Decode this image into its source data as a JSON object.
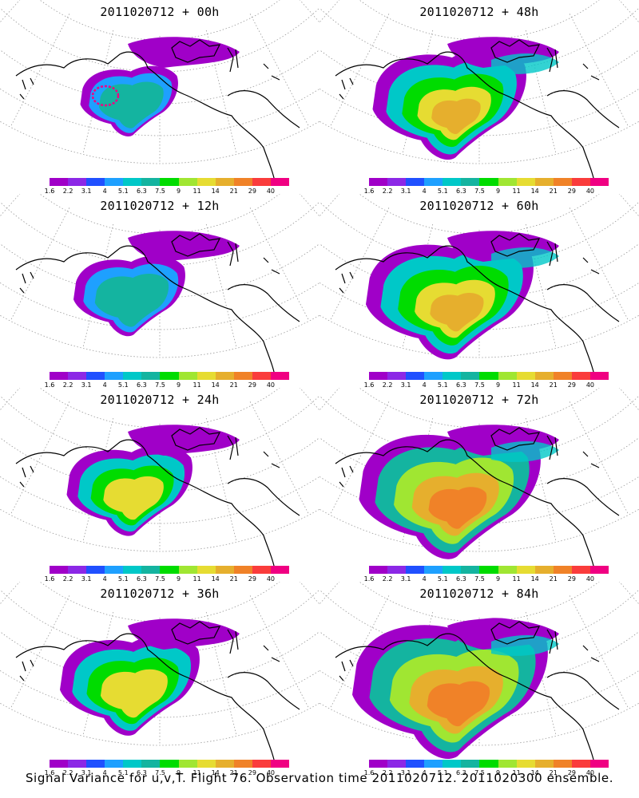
{
  "caption": "Signal Variance for u,v,T. Flight 76. Observation time 2011020712. 2011020300 ensemble.",
  "colorbar": {
    "colors": [
      "#a000c8",
      "#8c28e6",
      "#2050ff",
      "#1ea0ff",
      "#00c8c8",
      "#14b4a0",
      "#00dc00",
      "#a0e632",
      "#e6dc32",
      "#e6af2d",
      "#f08228",
      "#fa3c3c",
      "#f00082"
    ],
    "labels": [
      "1.6",
      "2.2",
      "3.1",
      "4",
      "5.1",
      "6.3",
      "7.5",
      "9",
      "11",
      "14",
      "21",
      "29",
      "40"
    ]
  },
  "panels": [
    {
      "title": "2011020712 + 00h",
      "lead_hours": 0
    },
    {
      "title": "2011020712 + 48h",
      "lead_hours": 48
    },
    {
      "title": "2011020712 + 12h",
      "lead_hours": 12
    },
    {
      "title": "2011020712 + 60h",
      "lead_hours": 60
    },
    {
      "title": "2011020712 + 24h",
      "lead_hours": 24
    },
    {
      "title": "2011020712 + 72h",
      "lead_hours": 72
    },
    {
      "title": "2011020712 + 36h",
      "lead_hours": 36
    },
    {
      "title": "2011020712 + 84h",
      "lead_hours": 84
    }
  ]
}
